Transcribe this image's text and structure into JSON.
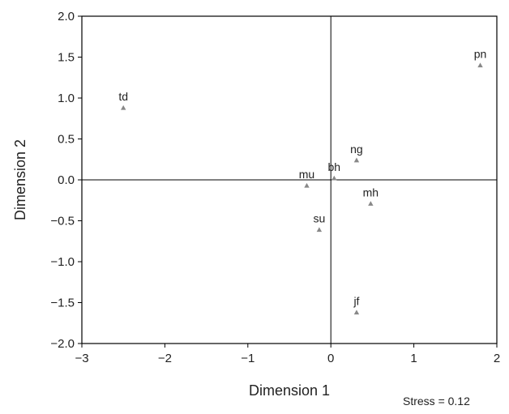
{
  "chart_data": {
    "type": "scatter",
    "xlabel": "Dimension 1",
    "ylabel": "Dimension 2",
    "xlim": [
      -3,
      2
    ],
    "ylim": [
      -2.0,
      2.0
    ],
    "x_ticks": [
      -3,
      -2,
      -1,
      0,
      1,
      2
    ],
    "x_tick_labels": [
      "−3",
      "−2",
      "−1",
      "0",
      "1",
      "2"
    ],
    "y_ticks": [
      2.0,
      1.5,
      1.0,
      0.5,
      0.0,
      -0.5,
      -1.0,
      -1.5,
      -2.0
    ],
    "y_tick_labels": [
      "2.0",
      "1.5",
      "1.0",
      "0.5",
      "0.0",
      "−0.5",
      "−1.0",
      "−1.5",
      "−2.0"
    ],
    "grid": false,
    "zero_lines": true,
    "marker": "triangle",
    "point_color": "#888888",
    "points": [
      {
        "label": "td",
        "x": -2.5,
        "y": 0.88
      },
      {
        "label": "pn",
        "x": 1.8,
        "y": 1.4
      },
      {
        "label": "ng",
        "x": 0.31,
        "y": 0.24
      },
      {
        "label": "bh",
        "x": 0.04,
        "y": 0.02
      },
      {
        "label": "mu",
        "x": -0.29,
        "y": -0.07
      },
      {
        "label": "mh",
        "x": 0.48,
        "y": -0.29
      },
      {
        "label": "su",
        "x": -0.14,
        "y": -0.61
      },
      {
        "label": "jf",
        "x": 0.31,
        "y": -1.62
      }
    ],
    "annotation": "Stress = 0.12"
  }
}
